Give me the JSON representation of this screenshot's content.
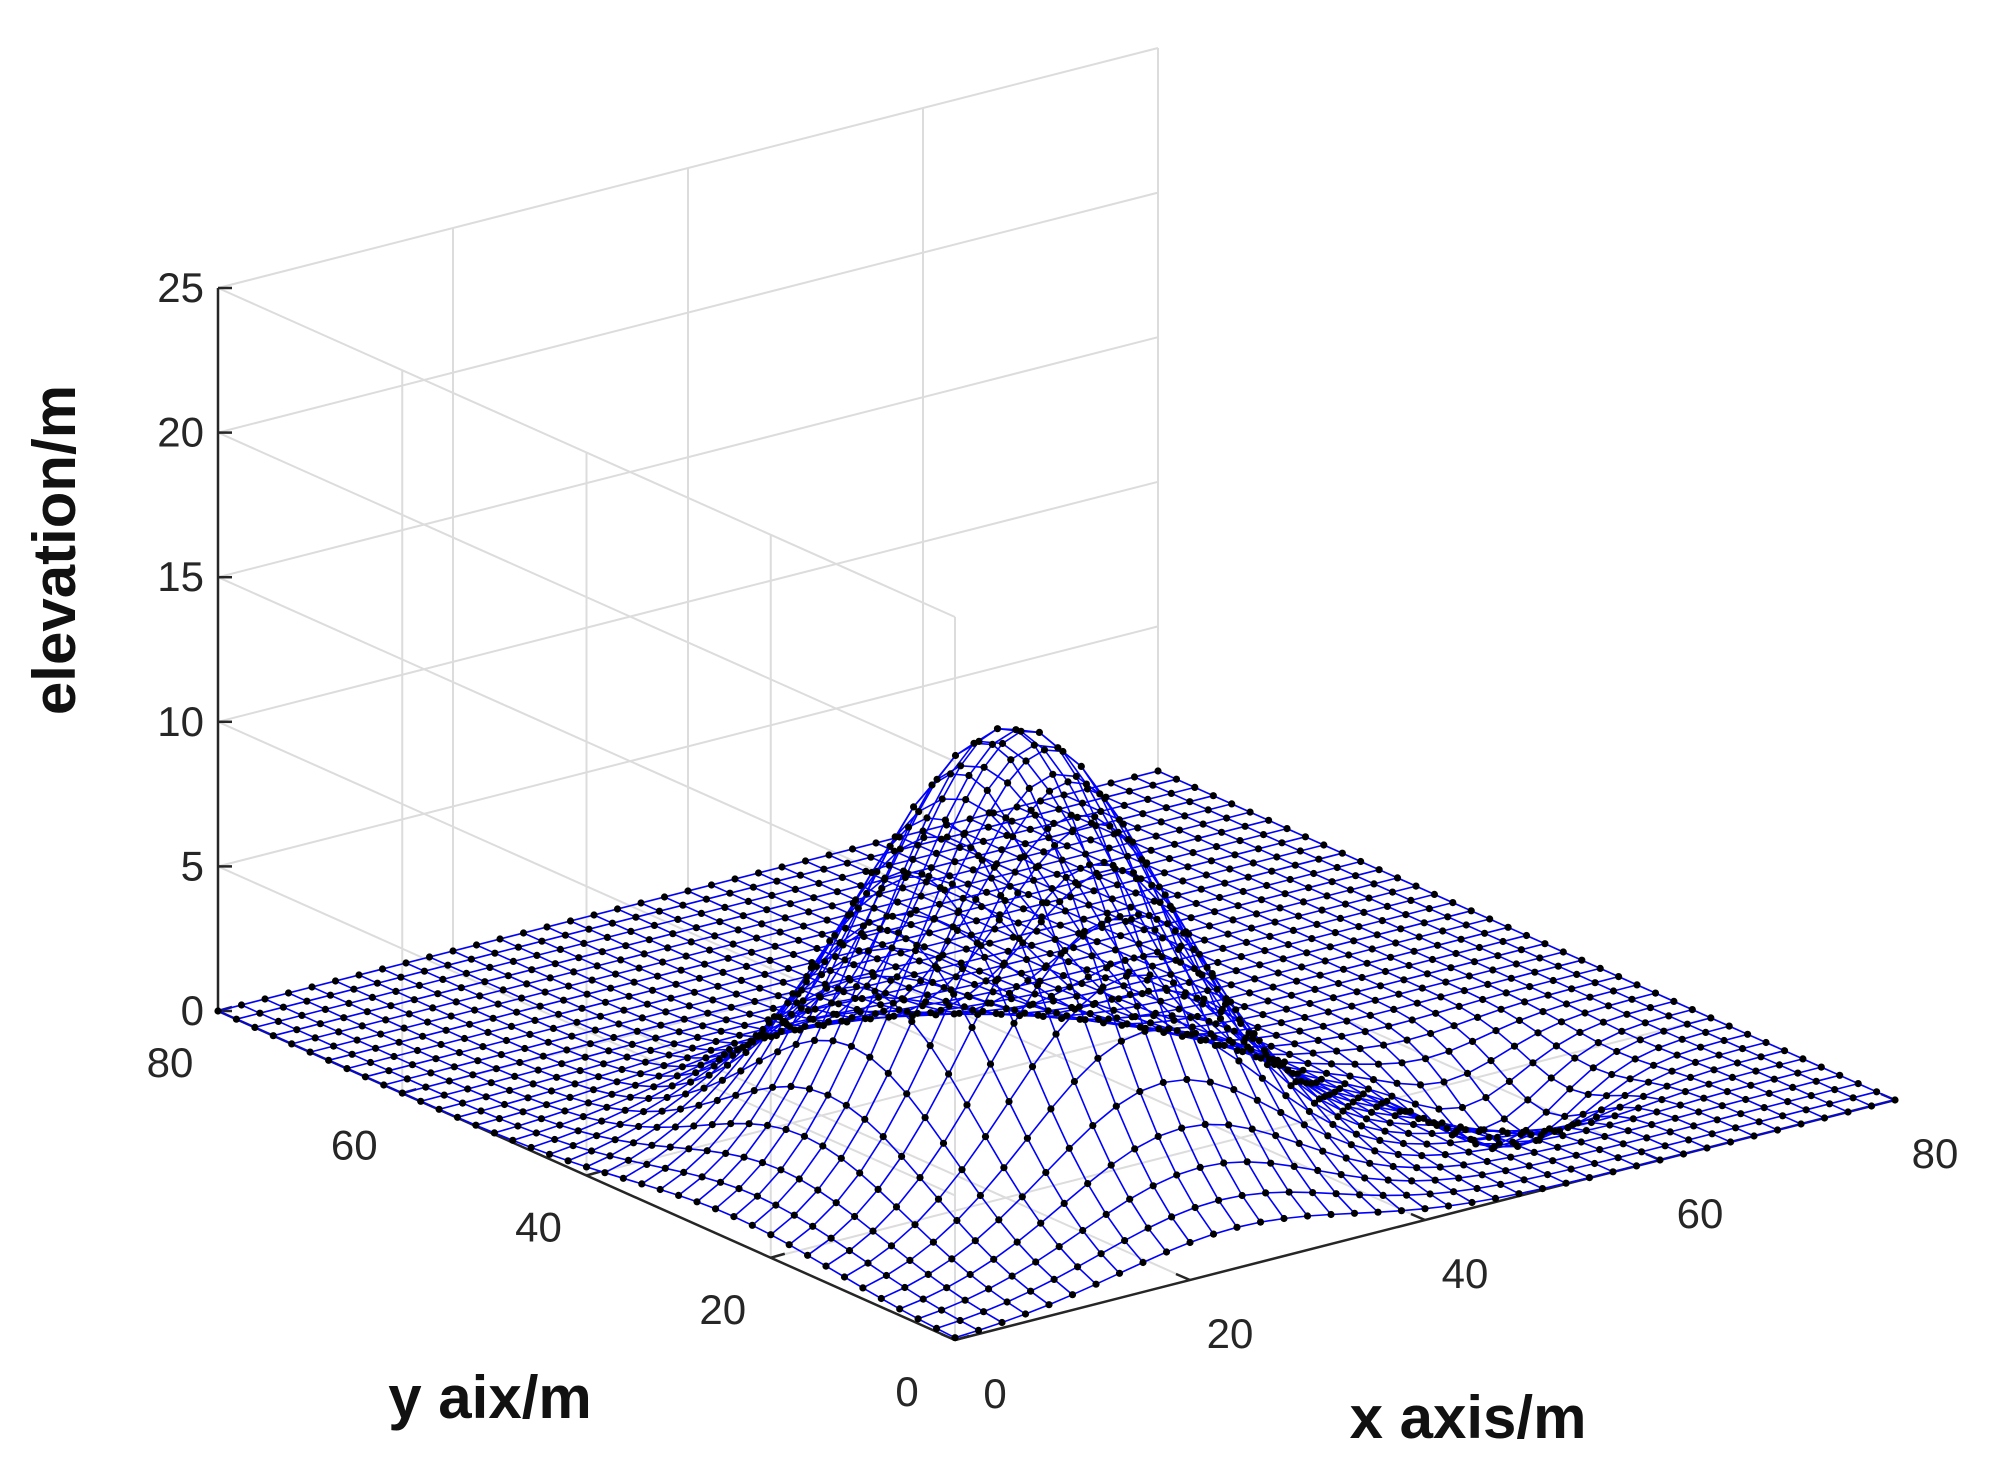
{
  "chart_data": {
    "type": "surface-mesh",
    "title": "",
    "xlabel": "x axis/m",
    "ylabel": "y aix/m",
    "zlabel": "elevation/m",
    "xlim": [
      0,
      80
    ],
    "ylim": [
      0,
      80
    ],
    "zlim": [
      0,
      25
    ],
    "xticks": [
      "0",
      "20",
      "40",
      "60",
      "80"
    ],
    "yticks": [
      "0",
      "20",
      "40",
      "60",
      "80"
    ],
    "zticks": [
      "0",
      "5",
      "10",
      "15",
      "20",
      "25"
    ],
    "grid": true,
    "colors": {
      "mesh": "#0000ff",
      "markers": "#000000",
      "grid": "#dcdcdc",
      "axis": "#262626"
    },
    "surface": {
      "grid_spacing": 2,
      "peak": {
        "x": 24,
        "y": 24,
        "z": 15.2,
        "sigma_x": 10,
        "sigma_y": 11
      },
      "dip": {
        "x": 62,
        "y": 20,
        "z": -2.5,
        "sigma": 5
      },
      "base_elevation": 0
    }
  }
}
